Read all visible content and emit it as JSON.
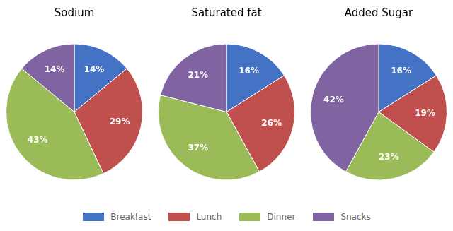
{
  "chart_data": [
    {
      "type": "pie",
      "title": "Sodium",
      "categories": [
        "Breakfast",
        "Lunch",
        "Dinner",
        "Snacks"
      ],
      "values": [
        14,
        29,
        43,
        14
      ],
      "value_labels": [
        "14%",
        "29%",
        "43%",
        "14%"
      ],
      "colors": [
        "#4472C4",
        "#C0504D",
        "#9BBB59",
        "#8064A2"
      ],
      "data_labels": true,
      "legend": "bottom"
    },
    {
      "type": "pie",
      "title": "Saturated fat",
      "categories": [
        "Breakfast",
        "Lunch",
        "Dinner",
        "Snacks"
      ],
      "values": [
        16,
        26,
        37,
        21
      ],
      "value_labels": [
        "16%",
        "26%",
        "37%",
        "21%"
      ],
      "colors": [
        "#4472C4",
        "#C0504D",
        "#9BBB59",
        "#8064A2"
      ],
      "data_labels": true,
      "legend": "bottom"
    },
    {
      "type": "pie",
      "title": "Added Sugar",
      "categories": [
        "Breakfast",
        "Lunch",
        "Dinner",
        "Snacks"
      ],
      "values": [
        16,
        19,
        23,
        42
      ],
      "value_labels": [
        "16%",
        "19%",
        "23%",
        "42%"
      ],
      "colors": [
        "#4472C4",
        "#C0504D",
        "#9BBB59",
        "#8064A2"
      ],
      "data_labels": true,
      "legend": "bottom"
    }
  ]
}
